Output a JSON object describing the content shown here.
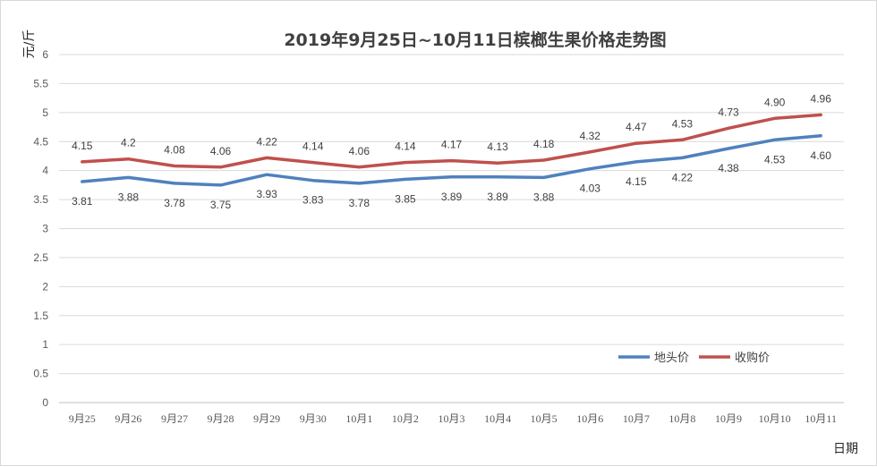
{
  "chart_data": {
    "type": "line",
    "title": "2019年9月25日~10月11日槟榔生果价格走势图",
    "xlabel": "日期",
    "ylabel": "元/斤",
    "ylim": [
      0,
      6
    ],
    "yticks": [
      "0",
      "0.5",
      "1",
      "1.5",
      "2",
      "2.5",
      "3",
      "3.5",
      "4",
      "4.5",
      "5",
      "5.5",
      "6"
    ],
    "categories": [
      "9月25",
      "9月26",
      "9月27",
      "9月28",
      "9月29",
      "9月30",
      "10月1",
      "10月2",
      "10月3",
      "10月4",
      "10月5",
      "10月6",
      "10月7",
      "10月8",
      "10月9",
      "10月10",
      "10月11"
    ],
    "grid": true,
    "legend_position": "bottom-right",
    "series": [
      {
        "name": "地头价",
        "color": "#4f81bd",
        "values": [
          3.81,
          3.88,
          3.78,
          3.75,
          3.93,
          3.83,
          3.78,
          3.85,
          3.89,
          3.89,
          3.88,
          4.03,
          4.15,
          4.22,
          4.38,
          4.53,
          4.6
        ],
        "labels": [
          "3.81",
          "3.88",
          "3.78",
          "3.75",
          "3.93",
          "3.83",
          "3.78",
          "3.85",
          "3.89",
          "3.89",
          "3.88",
          "4.03",
          "4.15",
          "4.22",
          "4.38",
          "4.53",
          "4.60"
        ],
        "label_side": "below"
      },
      {
        "name": "收购价",
        "color": "#c0504d",
        "values": [
          4.15,
          4.2,
          4.08,
          4.06,
          4.22,
          4.14,
          4.06,
          4.14,
          4.17,
          4.13,
          4.18,
          4.32,
          4.47,
          4.53,
          4.73,
          4.9,
          4.96
        ],
        "labels": [
          "4.15",
          "4.2",
          "4.08",
          "4.06",
          "4.22",
          "4.14",
          "4.06",
          "4.14",
          "4.17",
          "4.13",
          "4.18",
          "4.32",
          "4.47",
          "4.53",
          "4.73",
          "4.90",
          "4.96"
        ],
        "label_side": "above"
      }
    ]
  }
}
